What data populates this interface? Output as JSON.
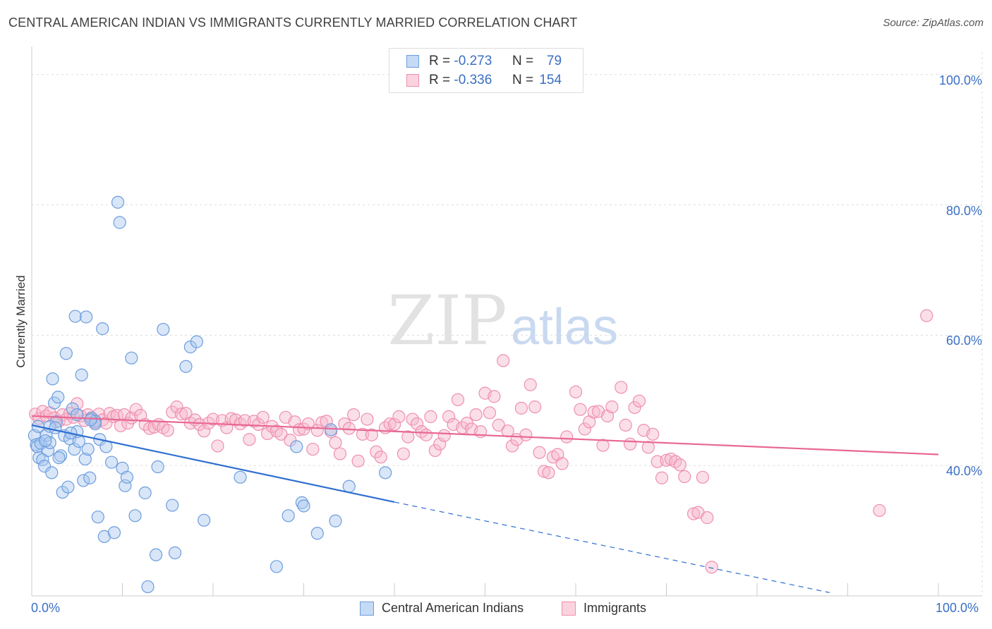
{
  "title": "CENTRAL AMERICAN INDIAN VS IMMIGRANTS CURRENTLY MARRIED CORRELATION CHART",
  "source": "Source: ZipAtlas.com",
  "watermark": {
    "zip": "ZIP",
    "atlas": "atlas"
  },
  "legend_top": [
    {
      "r_label": "R =",
      "r_value": "-0.273",
      "n_label": "N =",
      "n_value": "79"
    },
    {
      "r_label": "R =",
      "r_value": "-0.336",
      "n_label": "N =",
      "n_value": "154"
    }
  ],
  "colors": {
    "blue_fill": "#a9c7ef",
    "blue_stroke": "#6d9ddd",
    "blue_line": "#2f6fd1",
    "pink_fill": "#f6b8cb",
    "pink_stroke": "#ee8fae",
    "pink_line": "#e86893",
    "axis_label": "#3a6fc4",
    "grid": "#dddddd"
  },
  "chart_data": {
    "type": "scatter",
    "title": "CENTRAL AMERICAN INDIAN VS IMMIGRANTS CURRENTLY MARRIED CORRELATION CHART",
    "xlabel": "",
    "ylabel": "Currently Married",
    "xlim": [
      0,
      100
    ],
    "ylim": [
      20,
      103
    ],
    "x_tick_labels": [
      "0.0%",
      "100.0%"
    ],
    "y_ticks": [
      40,
      60,
      80,
      100
    ],
    "y_tick_labels": [
      "40.0%",
      "60.0%",
      "80.0%",
      "100.0%"
    ],
    "grid": true,
    "legend_placement": "top-center",
    "series": [
      {
        "name": "Central American Indians",
        "color": "#a9c7ef",
        "trend": {
          "x0": 0,
          "y0": 46.2,
          "x1": 40,
          "y1": 34.4,
          "dashed_to_x": 88,
          "dashed_to_y": 20.5
        },
        "points": [
          [
            0.3,
            44.6
          ],
          [
            0.5,
            43.2
          ],
          [
            0.6,
            42.9
          ],
          [
            0.7,
            46.0
          ],
          [
            0.8,
            41.2
          ],
          [
            1.0,
            43.4
          ],
          [
            1.2,
            40.9
          ],
          [
            1.4,
            39.9
          ],
          [
            1.6,
            44.6
          ],
          [
            1.8,
            42.3
          ],
          [
            2.0,
            43.5
          ],
          [
            2.2,
            38.9
          ],
          [
            2.3,
            53.3
          ],
          [
            2.5,
            49.6
          ],
          [
            2.7,
            46.7
          ],
          [
            2.9,
            50.5
          ],
          [
            3.2,
            41.5
          ],
          [
            3.4,
            35.9
          ],
          [
            3.6,
            44.6
          ],
          [
            3.8,
            57.2
          ],
          [
            4.0,
            36.7
          ],
          [
            4.2,
            44.1
          ],
          [
            4.5,
            48.7
          ],
          [
            4.7,
            42.5
          ],
          [
            4.8,
            62.9
          ],
          [
            5.0,
            47.8
          ],
          [
            5.2,
            43.7
          ],
          [
            5.5,
            53.9
          ],
          [
            5.7,
            37.7
          ],
          [
            5.9,
            41.0
          ],
          [
            6.0,
            62.8
          ],
          [
            6.2,
            42.5
          ],
          [
            6.4,
            38.1
          ],
          [
            6.6,
            47.3
          ],
          [
            7.0,
            46.8
          ],
          [
            7.3,
            32.1
          ],
          [
            7.5,
            44.0
          ],
          [
            7.8,
            61.0
          ],
          [
            8.0,
            29.1
          ],
          [
            8.2,
            42.9
          ],
          [
            8.8,
            40.5
          ],
          [
            9.1,
            29.7
          ],
          [
            9.5,
            80.4
          ],
          [
            9.7,
            77.3
          ],
          [
            10.0,
            39.6
          ],
          [
            10.3,
            36.9
          ],
          [
            10.5,
            38.2
          ],
          [
            11.0,
            56.5
          ],
          [
            11.4,
            32.3
          ],
          [
            12.5,
            35.8
          ],
          [
            12.8,
            21.4
          ],
          [
            13.7,
            26.3
          ],
          [
            13.9,
            39.8
          ],
          [
            14.5,
            60.9
          ],
          [
            15.5,
            33.9
          ],
          [
            15.8,
            26.6
          ],
          [
            17.0,
            55.2
          ],
          [
            17.5,
            58.2
          ],
          [
            18.2,
            59.0
          ],
          [
            19.0,
            31.6
          ],
          [
            23.0,
            38.2
          ],
          [
            27.0,
            24.5
          ],
          [
            28.3,
            32.3
          ],
          [
            29.2,
            42.9
          ],
          [
            29.8,
            34.3
          ],
          [
            30.0,
            33.8
          ],
          [
            31.5,
            29.6
          ],
          [
            33.0,
            45.5
          ],
          [
            33.5,
            31.5
          ],
          [
            35.0,
            36.8
          ],
          [
            39.0,
            38.9
          ],
          [
            2.0,
            46.0
          ],
          [
            5.0,
            45.2
          ],
          [
            7.0,
            46.4
          ],
          [
            3.0,
            41.2
          ],
          [
            1.5,
            43.8
          ],
          [
            6.5,
            47.0
          ],
          [
            4.3,
            45.0
          ],
          [
            2.6,
            45.8
          ]
        ]
      },
      {
        "name": "Immigrants",
        "color": "#f6b8cb",
        "trend": {
          "x0": 0,
          "y0": 47.6,
          "x1": 100,
          "y1": 41.7
        },
        "points": [
          [
            0.4,
            47.9
          ],
          [
            0.8,
            47.2
          ],
          [
            1.2,
            48.3
          ],
          [
            1.6,
            47.6
          ],
          [
            2.0,
            48.1
          ],
          [
            2.5,
            47.3
          ],
          [
            3.0,
            46.8
          ],
          [
            3.4,
            47.8
          ],
          [
            3.8,
            47.1
          ],
          [
            4.2,
            48.0
          ],
          [
            4.6,
            47.4
          ],
          [
            5.0,
            49.5
          ],
          [
            5.4,
            47.6
          ],
          [
            5.8,
            46.9
          ],
          [
            6.2,
            47.8
          ],
          [
            6.6,
            47.2
          ],
          [
            7.0,
            46.6
          ],
          [
            7.4,
            47.9
          ],
          [
            7.8,
            47.0
          ],
          [
            8.2,
            46.5
          ],
          [
            8.6,
            48.0
          ],
          [
            9.0,
            47.5
          ],
          [
            9.4,
            47.7
          ],
          [
            9.8,
            46.1
          ],
          [
            10.2,
            47.8
          ],
          [
            10.6,
            46.5
          ],
          [
            11.0,
            47.3
          ],
          [
            11.5,
            48.6
          ],
          [
            12.0,
            47.7
          ],
          [
            12.5,
            46.3
          ],
          [
            13.0,
            45.7
          ],
          [
            13.5,
            45.9
          ],
          [
            14.0,
            46.3
          ],
          [
            14.5,
            45.8
          ],
          [
            15.0,
            45.4
          ],
          [
            15.5,
            48.2
          ],
          [
            16.0,
            49.0
          ],
          [
            16.5,
            47.9
          ],
          [
            17.0,
            48.0
          ],
          [
            17.5,
            46.5
          ],
          [
            18.0,
            47.0
          ],
          [
            18.5,
            46.3
          ],
          [
            19.0,
            45.3
          ],
          [
            19.5,
            46.5
          ],
          [
            20.0,
            47.1
          ],
          [
            20.5,
            43.0
          ],
          [
            21.0,
            46.9
          ],
          [
            21.5,
            45.8
          ],
          [
            22.0,
            47.2
          ],
          [
            22.5,
            47.0
          ],
          [
            23.0,
            46.4
          ],
          [
            23.5,
            46.9
          ],
          [
            24.0,
            44.0
          ],
          [
            24.5,
            46.8
          ],
          [
            25.0,
            46.3
          ],
          [
            25.5,
            47.4
          ],
          [
            26.0,
            44.9
          ],
          [
            26.5,
            46.0
          ],
          [
            27.0,
            45.3
          ],
          [
            27.5,
            44.8
          ],
          [
            28.0,
            47.4
          ],
          [
            28.5,
            43.9
          ],
          [
            29.0,
            46.7
          ],
          [
            29.5,
            45.5
          ],
          [
            30.0,
            45.6
          ],
          [
            30.5,
            46.4
          ],
          [
            31.0,
            42.5
          ],
          [
            31.5,
            45.4
          ],
          [
            32.0,
            46.6
          ],
          [
            32.5,
            46.8
          ],
          [
            33.0,
            45.2
          ],
          [
            33.5,
            43.5
          ],
          [
            34.0,
            41.8
          ],
          [
            34.5,
            46.4
          ],
          [
            35.0,
            45.7
          ],
          [
            35.5,
            47.8
          ],
          [
            36.0,
            40.7
          ],
          [
            36.5,
            44.8
          ],
          [
            37.0,
            47.1
          ],
          [
            37.5,
            44.7
          ],
          [
            38.0,
            42.1
          ],
          [
            38.5,
            41.3
          ],
          [
            39.0,
            45.8
          ],
          [
            39.5,
            46.4
          ],
          [
            40.0,
            46.3
          ],
          [
            40.5,
            47.5
          ],
          [
            41.0,
            41.8
          ],
          [
            41.5,
            44.4
          ],
          [
            42.0,
            47.1
          ],
          [
            42.5,
            46.4
          ],
          [
            43.0,
            45.2
          ],
          [
            43.5,
            44.7
          ],
          [
            44.0,
            47.5
          ],
          [
            44.5,
            42.3
          ],
          [
            45.0,
            43.3
          ],
          [
            45.5,
            44.6
          ],
          [
            46.0,
            47.5
          ],
          [
            46.5,
            46.3
          ],
          [
            47.0,
            50.1
          ],
          [
            47.5,
            45.8
          ],
          [
            48.0,
            46.5
          ],
          [
            48.5,
            45.6
          ],
          [
            49.0,
            47.8
          ],
          [
            49.5,
            45.2
          ],
          [
            50.0,
            51.1
          ],
          [
            50.5,
            48.1
          ],
          [
            51.0,
            50.6
          ],
          [
            51.5,
            46.2
          ],
          [
            52.0,
            56.1
          ],
          [
            52.5,
            45.3
          ],
          [
            53.0,
            43.0
          ],
          [
            53.5,
            44.0
          ],
          [
            54.0,
            48.8
          ],
          [
            54.5,
            44.7
          ],
          [
            55.0,
            52.4
          ],
          [
            55.5,
            49.0
          ],
          [
            56.0,
            42.0
          ],
          [
            56.5,
            39.1
          ],
          [
            57.0,
            38.9
          ],
          [
            57.5,
            41.3
          ],
          [
            58.0,
            41.7
          ],
          [
            58.5,
            40.3
          ],
          [
            59.0,
            44.4
          ],
          [
            60.0,
            51.3
          ],
          [
            60.5,
            48.6
          ],
          [
            61.0,
            45.6
          ],
          [
            61.5,
            46.7
          ],
          [
            62.0,
            48.2
          ],
          [
            62.5,
            48.3
          ],
          [
            63.0,
            43.1
          ],
          [
            63.5,
            47.6
          ],
          [
            64.0,
            49.0
          ],
          [
            65.0,
            52.0
          ],
          [
            65.5,
            46.2
          ],
          [
            66.0,
            43.3
          ],
          [
            66.5,
            48.9
          ],
          [
            67.0,
            49.9
          ],
          [
            67.5,
            45.4
          ],
          [
            68.0,
            42.8
          ],
          [
            68.5,
            44.8
          ],
          [
            69.0,
            40.6
          ],
          [
            69.5,
            38.1
          ],
          [
            70.0,
            40.8
          ],
          [
            70.5,
            41.0
          ],
          [
            71.0,
            40.6
          ],
          [
            71.5,
            40.1
          ],
          [
            72.0,
            38.3
          ],
          [
            73.0,
            32.6
          ],
          [
            73.5,
            32.8
          ],
          [
            74.0,
            38.2
          ],
          [
            74.5,
            32.0
          ],
          [
            75.0,
            24.4
          ],
          [
            93.5,
            33.1
          ],
          [
            98.7,
            63.0
          ]
        ]
      }
    ]
  }
}
